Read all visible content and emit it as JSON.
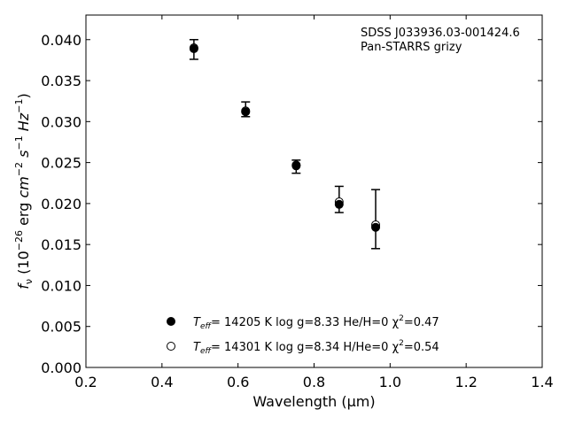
{
  "chart_data": {
    "type": "scatter",
    "xlabel": "Wavelength (μm)",
    "ylabel": "fν (10⁻²⁶ erg cm⁻² s⁻¹ Hz⁻¹)",
    "xlim": [
      0.2,
      1.4
    ],
    "ylim": [
      0.0,
      0.043
    ],
    "x_ticks": [
      "0.2",
      "0.4",
      "0.6",
      "0.8",
      "1.0",
      "1.2",
      "1.4"
    ],
    "y_ticks": [
      "0.000",
      "0.005",
      "0.010",
      "0.015",
      "0.020",
      "0.025",
      "0.030",
      "0.035",
      "0.040"
    ],
    "grid": false,
    "annotation": [
      "SDSS J033936.03-001424.6",
      "Pan-STARRS grizy"
    ],
    "observed": {
      "x": [
        0.484,
        0.62,
        0.753,
        0.866,
        0.962
      ],
      "y": [
        0.0388,
        0.0315,
        0.0245,
        0.0205,
        0.0181
      ],
      "err": [
        0.0012,
        0.0009,
        0.0008,
        0.0016,
        0.0036
      ]
    },
    "series": [
      {
        "marker": "filled-circle",
        "label_parts": [
          "T",
          "eff",
          "= 14205 K  log g=8.33  He/H=0  χ",
          "2",
          "=0.47"
        ],
        "x": [
          0.484,
          0.62,
          0.753,
          0.866,
          0.962
        ],
        "y": [
          0.0389,
          0.0312,
          0.0246,
          0.0199,
          0.0171
        ]
      },
      {
        "marker": "open-circle",
        "label_parts": [
          "T",
          "eff",
          "= 14301 K  log g=8.34  H/He=0  χ",
          "2",
          "=0.54"
        ],
        "x": [
          0.484,
          0.62,
          0.753,
          0.866,
          0.962
        ],
        "y": [
          0.039,
          0.0313,
          0.0247,
          0.0202,
          0.0174
        ]
      }
    ]
  }
}
